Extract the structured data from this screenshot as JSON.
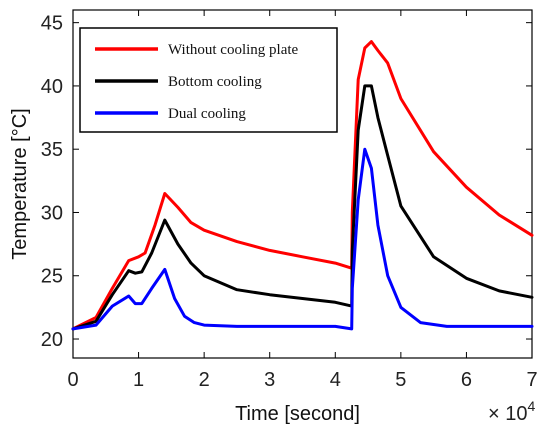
{
  "chart_data": {
    "type": "line",
    "title": "",
    "xlabel": "Time [second]",
    "ylabel": "Temperature [°C]",
    "x_multiplier_label": "× 10",
    "x_multiplier_exponent": "4",
    "xlim": [
      0,
      7
    ],
    "ylim": [
      18.5,
      46
    ],
    "xticks": [
      0,
      1,
      2,
      3,
      4,
      5,
      6,
      7
    ],
    "yticks": [
      20,
      25,
      30,
      35,
      40,
      45
    ],
    "grid": false,
    "legend_position": "top-left",
    "series": [
      {
        "name": "Without cooling plate",
        "color": "#ff0000",
        "x": [
          0,
          0.35,
          0.6,
          0.85,
          1.0,
          1.1,
          1.25,
          1.4,
          1.6,
          1.8,
          2.0,
          2.5,
          3.0,
          3.5,
          4.0,
          4.25,
          4.26,
          4.35,
          4.45,
          4.55,
          4.65,
          4.8,
          5.0,
          5.5,
          6.0,
          6.5,
          7.0
        ],
        "values": [
          20.8,
          21.7,
          24.0,
          26.2,
          26.5,
          26.8,
          29.0,
          31.5,
          30.4,
          29.2,
          28.6,
          27.7,
          27.0,
          26.5,
          26.0,
          25.6,
          30.0,
          40.5,
          43.0,
          43.5,
          42.8,
          41.8,
          39.0,
          34.8,
          32.0,
          29.8,
          28.2
        ]
      },
      {
        "name": "Bottom cooling",
        "color": "#000000",
        "x": [
          0,
          0.35,
          0.6,
          0.85,
          0.95,
          1.05,
          1.2,
          1.4,
          1.6,
          1.8,
          2.0,
          2.5,
          3.0,
          3.5,
          4.0,
          4.25,
          4.26,
          4.35,
          4.45,
          4.55,
          4.65,
          4.8,
          5.0,
          5.5,
          6.0,
          6.5,
          7.0
        ],
        "values": [
          20.8,
          21.4,
          23.5,
          25.4,
          25.2,
          25.3,
          26.8,
          29.4,
          27.5,
          26.0,
          25.0,
          23.9,
          23.5,
          23.2,
          22.9,
          22.6,
          27.0,
          36.5,
          40.0,
          40.0,
          37.5,
          34.5,
          30.5,
          26.5,
          24.8,
          23.8,
          23.3
        ]
      },
      {
        "name": "Dual cooling",
        "color": "#0000ff",
        "x": [
          0,
          0.35,
          0.6,
          0.85,
          0.95,
          1.05,
          1.2,
          1.4,
          1.55,
          1.7,
          1.85,
          2.0,
          2.5,
          3.0,
          3.5,
          4.0,
          4.25,
          4.26,
          4.35,
          4.45,
          4.55,
          4.65,
          4.8,
          5.0,
          5.3,
          5.7,
          6.0,
          6.5,
          7.0
        ],
        "values": [
          20.8,
          21.1,
          22.6,
          23.4,
          22.8,
          22.8,
          24.0,
          25.5,
          23.2,
          21.8,
          21.3,
          21.1,
          21.0,
          21.0,
          21.0,
          21.0,
          20.8,
          24.0,
          31.0,
          35.0,
          33.5,
          29.0,
          25.0,
          22.5,
          21.3,
          21.0,
          21.0,
          21.0,
          21.0
        ]
      }
    ]
  }
}
